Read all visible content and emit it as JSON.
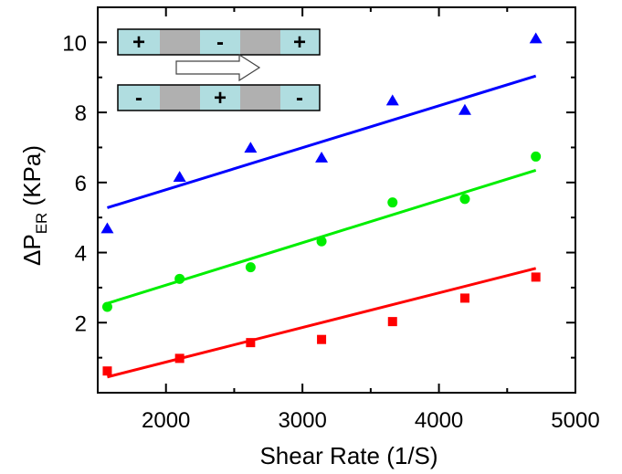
{
  "chart_data": {
    "type": "scatter",
    "xlabel": "Shear Rate (1/S)",
    "ylabel": {
      "prefix": "ΔP",
      "subscript": "ER",
      "suffix": " (KPa)"
    },
    "xlim": [
      1500,
      5000
    ],
    "ylim": [
      0,
      11
    ],
    "x_ticks": [
      2000,
      3000,
      4000,
      5000
    ],
    "x_minor_ticks": [
      2500,
      3500,
      4500
    ],
    "y_ticks": [
      2,
      4,
      6,
      8,
      10
    ],
    "y_minor_ticks": [
      1,
      3,
      5,
      7,
      9
    ],
    "series": [
      {
        "marker": "triangle",
        "color": "#0000ff",
        "x": [
          1570,
          2100,
          2620,
          3140,
          3660,
          4190,
          4710
        ],
        "y": [
          4.68,
          6.15,
          6.98,
          6.7,
          8.33,
          8.06,
          10.1
        ],
        "fit": {
          "x": [
            1570,
            4710
          ],
          "y": [
            5.28,
            9.04
          ]
        }
      },
      {
        "marker": "circle",
        "color": "#00ee00",
        "x": [
          1570,
          2100,
          2620,
          3140,
          3660,
          4190,
          4710
        ],
        "y": [
          2.45,
          3.25,
          3.58,
          4.32,
          5.43,
          5.53,
          6.74
        ],
        "fit": {
          "x": [
            1570,
            4710
          ],
          "y": [
            2.55,
            6.35
          ]
        }
      },
      {
        "marker": "square",
        "color": "#ff0000",
        "x": [
          1570,
          2100,
          2620,
          3140,
          3660,
          4190,
          4710
        ],
        "y": [
          0.62,
          0.98,
          1.43,
          1.52,
          2.03,
          2.7,
          3.3
        ],
        "fit": {
          "x": [
            1570,
            4710
          ],
          "y": [
            0.45,
            3.55
          ]
        }
      }
    ]
  },
  "inset": {
    "top_strip_signs": [
      "+",
      "-",
      "+"
    ],
    "bottom_strip_signs": [
      "-",
      "+",
      "-"
    ],
    "fill_light": "#b0dde0",
    "fill_gray": "#b0b0b0"
  }
}
